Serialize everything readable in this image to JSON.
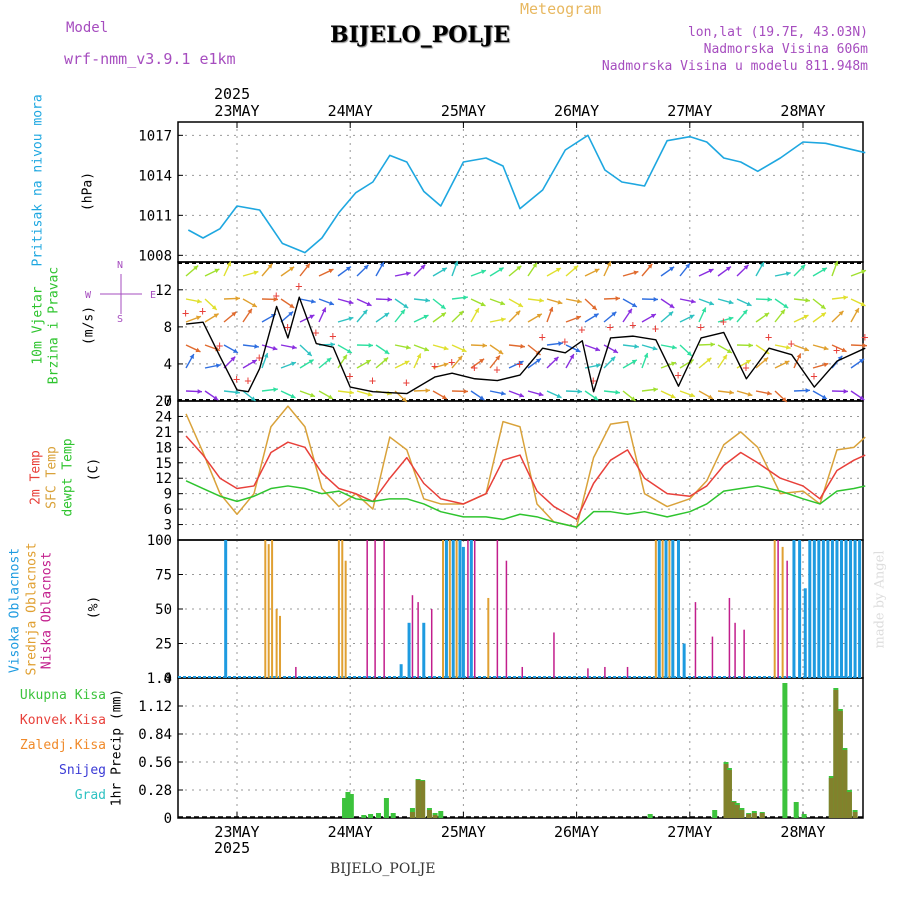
{
  "header": {
    "model_label": "Model",
    "model_name": "wrf-nmm_v3.9.1 e1km",
    "meteogram_label": "Meteogram",
    "station": "BIJELO_POLJE",
    "lonlat": "lon,lat (19.7E, 43.03N)",
    "altitude": "Nadmorska Visina 606m",
    "model_altitude": "Nadmorska Visina u modelu 811.948m"
  },
  "footer": {
    "station": "BIJELO_POLJE",
    "credit": "made by Angel"
  },
  "time_axis": {
    "year": "2025",
    "days": [
      "23MAY",
      "24MAY",
      "25MAY",
      "26MAY",
      "27MAY",
      "28MAY"
    ]
  },
  "colors": {
    "pressure": "#1ea7e0",
    "temp2m": "#e8403a",
    "sfctemp": "#d9a23a",
    "dewpoint": "#2ec42e",
    "high_cloud": "#1e9be0",
    "mid_cloud": "#e0a032",
    "low_cloud": "#c21e8c",
    "total_precip": "#3cc33c",
    "conv_precip": "#e8403a",
    "frozen_precip": "#f08a2a",
    "snow": "#3a3ad6",
    "hail": "#2ec2c2",
    "grid": "#999999"
  },
  "chart_data": [
    {
      "type": "line",
      "panel": "pressure",
      "ylabel_name": "Pritisak na nivou mora",
      "ylabel_unit": "(hPa)",
      "ylim": [
        1007.5,
        1018.0
      ],
      "yticks": [
        "1008",
        "1011",
        "1014",
        "1017"
      ],
      "ytick_values": [
        1008,
        1011,
        1014,
        1017
      ],
      "x_days": [
        -0.43,
        -0.3,
        -0.15,
        0.0,
        0.2,
        0.4,
        0.6,
        0.75,
        0.9,
        1.05,
        1.2,
        1.35,
        1.5,
        1.65,
        1.8,
        2.0,
        2.2,
        2.35,
        2.5,
        2.7,
        2.9,
        3.1,
        3.25,
        3.4,
        3.6,
        3.8,
        4.0,
        4.15,
        4.3,
        4.45,
        4.6,
        4.8,
        5.0,
        5.2,
        5.35,
        5.55
      ],
      "values": [
        1009.9,
        1009.3,
        1010.0,
        1011.7,
        1011.4,
        1008.9,
        1008.2,
        1009.3,
        1011.2,
        1012.7,
        1013.5,
        1015.5,
        1015.0,
        1012.8,
        1011.7,
        1015.0,
        1015.3,
        1014.7,
        1011.5,
        1012.9,
        1015.9,
        1017.0,
        1014.4,
        1013.5,
        1013.2,
        1016.6,
        1016.9,
        1016.5,
        1015.3,
        1015.0,
        1014.3,
        1015.3,
        1016.5,
        1016.4,
        1016.1,
        1015.7
      ]
    },
    {
      "type": "line",
      "panel": "wind",
      "ylabel_name": "10m Vjetar Brzina i Pravac",
      "ylabel_unit": "(m/s)",
      "compass": {
        "n": "N",
        "s": "S",
        "e": "E",
        "w": "W"
      },
      "ylim": [
        0,
        15
      ],
      "yticks": [
        "0",
        "4",
        "8",
        "12"
      ],
      "ytick_values": [
        0,
        4,
        8,
        12
      ],
      "x_days": [
        -0.45,
        -0.3,
        -0.15,
        0.0,
        0.1,
        0.2,
        0.35,
        0.45,
        0.55,
        0.7,
        0.85,
        1.0,
        1.2,
        1.5,
        1.75,
        1.9,
        2.1,
        2.3,
        2.5,
        2.7,
        2.9,
        3.05,
        3.15,
        3.3,
        3.5,
        3.7,
        3.9,
        4.1,
        4.3,
        4.5,
        4.7,
        4.9,
        5.1,
        5.3,
        5.55
      ],
      "values": [
        8.3,
        8.5,
        4.8,
        1.2,
        1.0,
        3.5,
        10.2,
        6.8,
        11.2,
        6.2,
        5.8,
        1.5,
        1.0,
        0.8,
        2.6,
        3.0,
        2.4,
        2.2,
        2.8,
        5.7,
        5.2,
        6.5,
        1.0,
        6.8,
        7.0,
        6.6,
        1.6,
        6.8,
        7.4,
        2.4,
        5.7,
        5.0,
        1.5,
        4.3,
        5.7
      ]
    },
    {
      "type": "line",
      "panel": "temperature",
      "ylabel_name": "2m Temp / SFC Temp / dewpt Temp",
      "series_names": [
        "2m Temp",
        "SFC Temp",
        "dewpt Temp"
      ],
      "ylabel_unit": "(C)",
      "ylim": [
        0,
        27
      ],
      "yticks": [
        "3",
        "6",
        "9",
        "12",
        "15",
        "18",
        "21",
        "24",
        "27"
      ],
      "ytick_values": [
        3,
        6,
        9,
        12,
        15,
        18,
        21,
        24,
        27
      ],
      "x_days": [
        -0.45,
        -0.3,
        -0.15,
        0.0,
        0.15,
        0.3,
        0.45,
        0.6,
        0.75,
        0.9,
        1.05,
        1.2,
        1.35,
        1.5,
        1.65,
        1.8,
        2.0,
        2.2,
        2.35,
        2.5,
        2.65,
        2.8,
        3.0,
        3.15,
        3.3,
        3.45,
        3.6,
        3.8,
        4.0,
        4.15,
        4.3,
        4.45,
        4.6,
        4.8,
        5.0,
        5.15,
        5.3,
        5.45,
        5.55
      ],
      "series": [
        {
          "name": "2m Temp",
          "values": [
            20.2,
            16.5,
            12.0,
            10.0,
            10.5,
            17.0,
            19.0,
            18.0,
            13.0,
            10.0,
            9.0,
            7.5,
            12.0,
            16.0,
            11.0,
            8.0,
            7.0,
            9.0,
            15.5,
            16.5,
            9.5,
            6.5,
            4.0,
            11.0,
            15.5,
            17.5,
            12.0,
            9.0,
            8.5,
            10.5,
            14.5,
            17.0,
            15.0,
            12.0,
            10.5,
            8.0,
            13.5,
            15.5,
            16.5
          ]
        },
        {
          "name": "SFC Temp",
          "values": [
            24.5,
            17.0,
            9.0,
            5.0,
            9.0,
            22.0,
            26.0,
            22.0,
            10.0,
            6.5,
            9.0,
            6.0,
            20.0,
            17.5,
            8.0,
            7.0,
            7.0,
            9.0,
            23.0,
            22.0,
            7.0,
            3.5,
            2.5,
            16.0,
            22.5,
            23.0,
            9.0,
            6.5,
            8.0,
            11.5,
            18.5,
            21.0,
            18.0,
            9.0,
            9.5,
            7.0,
            17.5,
            18.0,
            20.0
          ]
        },
        {
          "name": "dewpt Temp",
          "values": [
            11.5,
            10.0,
            8.5,
            7.5,
            8.5,
            10.0,
            10.5,
            10.0,
            9.0,
            9.5,
            8.0,
            7.5,
            8.0,
            8.0,
            7.0,
            5.5,
            4.5,
            4.5,
            4.0,
            5.0,
            4.5,
            3.5,
            2.5,
            5.5,
            5.5,
            5.0,
            5.5,
            4.5,
            5.5,
            7.0,
            9.5,
            10.0,
            10.5,
            9.5,
            8.0,
            7.0,
            9.5,
            10.0,
            10.5
          ]
        }
      ]
    },
    {
      "type": "bar",
      "panel": "clouds",
      "ylabel_name": "Visoka Oblacnost / Srednja Oblacnost / Niska Oblacnost",
      "series_names": [
        "Visoka Oblacnost",
        "Srednja Oblacnost",
        "Niska Oblacnost"
      ],
      "ylabel_unit": "(%)",
      "ylim": [
        0,
        100
      ],
      "yticks": [
        "0",
        "25",
        "50",
        "75",
        "100"
      ],
      "ytick_values": [
        0,
        25,
        50,
        75,
        100
      ],
      "bars": [
        {
          "series": "high",
          "x": -0.1,
          "v": 100
        },
        {
          "series": "mid",
          "x": 0.25,
          "v": 100
        },
        {
          "series": "mid",
          "x": 0.28,
          "v": 97
        },
        {
          "series": "mid",
          "x": 0.31,
          "v": 100
        },
        {
          "series": "mid",
          "x": 0.35,
          "v": 50
        },
        {
          "series": "mid",
          "x": 0.38,
          "v": 45
        },
        {
          "series": "low",
          "x": 0.52,
          "v": 8
        },
        {
          "series": "mid",
          "x": 0.9,
          "v": 100
        },
        {
          "series": "mid",
          "x": 0.93,
          "v": 100
        },
        {
          "series": "mid",
          "x": 0.96,
          "v": 85
        },
        {
          "series": "low",
          "x": 1.15,
          "v": 100
        },
        {
          "series": "low",
          "x": 1.22,
          "v": 100
        },
        {
          "series": "low",
          "x": 1.3,
          "v": 100
        },
        {
          "series": "high",
          "x": 1.45,
          "v": 10
        },
        {
          "series": "high",
          "x": 1.52,
          "v": 40
        },
        {
          "series": "low",
          "x": 1.55,
          "v": 60
        },
        {
          "series": "low",
          "x": 1.6,
          "v": 55
        },
        {
          "series": "high",
          "x": 1.65,
          "v": 40
        },
        {
          "series": "low",
          "x": 1.72,
          "v": 50
        },
        {
          "series": "mid",
          "x": 1.82,
          "v": 100
        },
        {
          "series": "high",
          "x": 1.85,
          "v": 100
        },
        {
          "series": "mid",
          "x": 1.88,
          "v": 100
        },
        {
          "series": "high",
          "x": 1.91,
          "v": 100
        },
        {
          "series": "mid",
          "x": 1.94,
          "v": 100
        },
        {
          "series": "high",
          "x": 1.97,
          "v": 100
        },
        {
          "series": "high",
          "x": 2.0,
          "v": 95
        },
        {
          "series": "low",
          "x": 2.04,
          "v": 100
        },
        {
          "series": "high",
          "x": 2.07,
          "v": 100
        },
        {
          "series": "low",
          "x": 2.1,
          "v": 100
        },
        {
          "series": "mid",
          "x": 2.22,
          "v": 58
        },
        {
          "series": "low",
          "x": 2.3,
          "v": 100
        },
        {
          "series": "low",
          "x": 2.38,
          "v": 85
        },
        {
          "series": "low",
          "x": 2.52,
          "v": 8
        },
        {
          "series": "low",
          "x": 2.8,
          "v": 33
        },
        {
          "series": "low",
          "x": 3.1,
          "v": 7
        },
        {
          "series": "low",
          "x": 3.25,
          "v": 8
        },
        {
          "series": "low",
          "x": 3.45,
          "v": 8
        },
        {
          "series": "mid",
          "x": 3.7,
          "v": 100
        },
        {
          "series": "high",
          "x": 3.73,
          "v": 100
        },
        {
          "series": "mid",
          "x": 3.76,
          "v": 100
        },
        {
          "series": "high",
          "x": 3.79,
          "v": 100
        },
        {
          "series": "mid",
          "x": 3.82,
          "v": 100
        },
        {
          "series": "high",
          "x": 3.85,
          "v": 100
        },
        {
          "series": "high",
          "x": 3.9,
          "v": 100
        },
        {
          "series": "high",
          "x": 3.95,
          "v": 25
        },
        {
          "series": "low",
          "x": 4.05,
          "v": 55
        },
        {
          "series": "low",
          "x": 4.2,
          "v": 30
        },
        {
          "series": "low",
          "x": 4.35,
          "v": 58
        },
        {
          "series": "low",
          "x": 4.4,
          "v": 40
        },
        {
          "series": "low",
          "x": 4.48,
          "v": 35
        },
        {
          "series": "mid",
          "x": 4.75,
          "v": 100
        },
        {
          "series": "low",
          "x": 4.78,
          "v": 100
        },
        {
          "series": "mid",
          "x": 4.82,
          "v": 95
        },
        {
          "series": "low",
          "x": 4.86,
          "v": 85
        },
        {
          "series": "high",
          "x": 4.92,
          "v": 100
        },
        {
          "series": "high",
          "x": 4.97,
          "v": 100
        },
        {
          "series": "high",
          "x": 5.02,
          "v": 65
        },
        {
          "series": "high",
          "x": 5.06,
          "v": 100
        },
        {
          "series": "high",
          "x": 5.1,
          "v": 100
        },
        {
          "series": "high",
          "x": 5.14,
          "v": 100
        },
        {
          "series": "high",
          "x": 5.18,
          "v": 100
        },
        {
          "series": "high",
          "x": 5.22,
          "v": 100
        },
        {
          "series": "high",
          "x": 5.26,
          "v": 100
        },
        {
          "series": "high",
          "x": 5.3,
          "v": 100
        },
        {
          "series": "high",
          "x": 5.34,
          "v": 100
        },
        {
          "series": "high",
          "x": 5.38,
          "v": 100
        },
        {
          "series": "high",
          "x": 5.42,
          "v": 100
        },
        {
          "series": "high",
          "x": 5.46,
          "v": 100
        },
        {
          "series": "high",
          "x": 5.5,
          "v": 100
        }
      ]
    },
    {
      "type": "bar",
      "panel": "precipitation",
      "legend": [
        "Ukupna Kisa",
        "Konvek.Kisa",
        "Zaledj.Kisa",
        "Snijeg",
        "Grad"
      ],
      "ylabel_name": "1hr Precip",
      "ylabel_unit": "(mm)",
      "ylim": [
        0,
        1.4
      ],
      "yticks": [
        "0",
        "0.28",
        "0.56",
        "0.84",
        "1.12",
        "1.4"
      ],
      "ytick_values": [
        0,
        0.28,
        0.56,
        0.84,
        1.12,
        1.4
      ],
      "bars": [
        {
          "x": 0.95,
          "total": 0.2,
          "conv": 0
        },
        {
          "x": 0.98,
          "total": 0.26,
          "conv": 0
        },
        {
          "x": 1.01,
          "total": 0.24,
          "conv": 0
        },
        {
          "x": 1.12,
          "total": 0.03,
          "conv": 0
        },
        {
          "x": 1.18,
          "total": 0.04,
          "conv": 0
        },
        {
          "x": 1.25,
          "total": 0.05,
          "conv": 0
        },
        {
          "x": 1.32,
          "total": 0.2,
          "conv": 0
        },
        {
          "x": 1.38,
          "total": 0.05,
          "conv": 0
        },
        {
          "x": 1.55,
          "total": 0.1,
          "conv": 0.06
        },
        {
          "x": 1.6,
          "total": 0.39,
          "conv": 0.38
        },
        {
          "x": 1.64,
          "total": 0.38,
          "conv": 0.37
        },
        {
          "x": 1.7,
          "total": 0.1,
          "conv": 0.08
        },
        {
          "x": 1.75,
          "total": 0.05,
          "conv": 0.03
        },
        {
          "x": 1.8,
          "total": 0.07,
          "conv": 0
        },
        {
          "x": 3.65,
          "total": 0.04,
          "conv": 0
        },
        {
          "x": 4.22,
          "total": 0.08,
          "conv": 0
        },
        {
          "x": 4.32,
          "total": 0.56,
          "conv": 0.54
        },
        {
          "x": 4.35,
          "total": 0.5,
          "conv": 0.48
        },
        {
          "x": 4.39,
          "total": 0.17,
          "conv": 0.16
        },
        {
          "x": 4.42,
          "total": 0.15,
          "conv": 0.13
        },
        {
          "x": 4.46,
          "total": 0.1,
          "conv": 0.08
        },
        {
          "x": 4.52,
          "total": 0.05,
          "conv": 0.04
        },
        {
          "x": 4.57,
          "total": 0.07,
          "conv": 0.05
        },
        {
          "x": 4.64,
          "total": 0.06,
          "conv": 0.05
        },
        {
          "x": 4.84,
          "total": 1.35,
          "conv": 0
        },
        {
          "x": 4.94,
          "total": 0.16,
          "conv": 0
        },
        {
          "x": 5.01,
          "total": 0.04,
          "conv": 0
        },
        {
          "x": 5.25,
          "total": 0.42,
          "conv": 0.4
        },
        {
          "x": 5.29,
          "total": 1.3,
          "conv": 1.28
        },
        {
          "x": 5.33,
          "total": 1.09,
          "conv": 1.07
        },
        {
          "x": 5.37,
          "total": 0.7,
          "conv": 0.68
        },
        {
          "x": 5.41,
          "total": 0.28,
          "conv": 0.26
        },
        {
          "x": 5.46,
          "total": 0.08,
          "conv": 0.06
        }
      ]
    }
  ]
}
